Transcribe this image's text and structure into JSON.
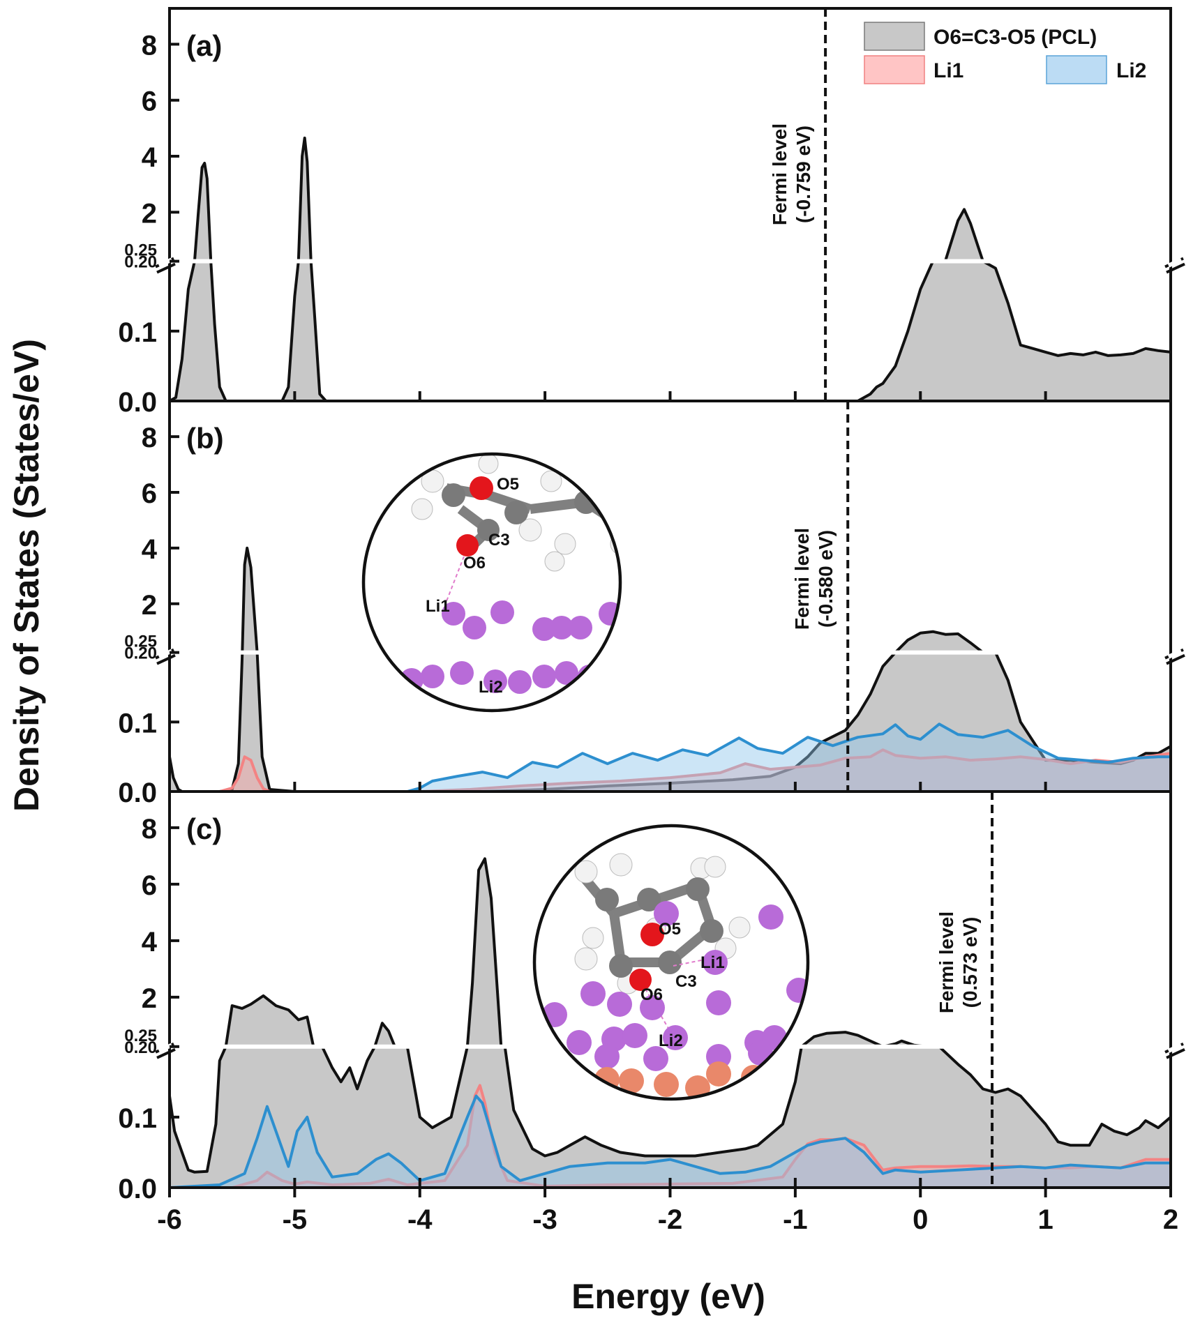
{
  "chart_data": {
    "type": "area",
    "title": "",
    "xlabel": "Energy (eV)",
    "ylabel": "Density of States (States/eV)",
    "xlim": [
      -6,
      2
    ],
    "xticks": [
      "-6",
      "-5",
      "-4",
      "-3",
      "-2",
      "-1",
      "0",
      "1",
      "2"
    ],
    "y_broken_axis": {
      "lower_range": [
        0,
        0.2
      ],
      "upper_range": [
        0.25,
        9
      ],
      "lower_ticks": [
        "0.0",
        "0.1",
        "0.20"
      ],
      "upper_ticks": [
        "0.25",
        "2",
        "4",
        "6",
        "8"
      ]
    },
    "legend": {
      "position": "top-right",
      "entries": [
        {
          "label": "O6=C3-O5 (PCL)",
          "color": "#c8c8c8",
          "edge": "#6f6f6f"
        },
        {
          "label": "Li1",
          "color": "#ffc5c5",
          "edge": "#f08080"
        },
        {
          "label": "Li2",
          "color": "#bcdcf4",
          "edge": "#5aa3d8"
        }
      ]
    },
    "panels": [
      {
        "label": "(a)",
        "fermi_label": "Fermi level",
        "fermi_value_text": "(-0.759 eV)",
        "fermi_level": -0.759,
        "series": [
          {
            "name": "O6=C3-O5 (PCL)",
            "x": [
              -6.0,
              -5.95,
              -5.9,
              -5.85,
              -5.8,
              -5.77,
              -5.74,
              -5.72,
              -5.7,
              -5.67,
              -5.64,
              -5.6,
              -5.55,
              -5.4,
              -5.2,
              -5.1,
              -5.05,
              -5.0,
              -4.97,
              -4.94,
              -4.92,
              -4.9,
              -4.87,
              -4.84,
              -4.8,
              -4.75,
              -4.5,
              -4.0,
              -3.0,
              -2.0,
              -1.0,
              -0.5,
              -0.4,
              -0.35,
              -0.3,
              -0.2,
              -0.1,
              0.0,
              0.1,
              0.2,
              0.3,
              0.35,
              0.4,
              0.5,
              0.6,
              0.7,
              0.8,
              0.9,
              1.0,
              1.1,
              1.2,
              1.3,
              1.4,
              1.5,
              1.6,
              1.7,
              1.8,
              1.9,
              2.0
            ],
            "y": [
              0.0,
              0.005,
              0.06,
              0.16,
              0.25,
              2.0,
              3.6,
              3.75,
              3.2,
              0.23,
              0.11,
              0.02,
              0.0,
              0.0,
              0.0,
              0.0,
              0.02,
              0.15,
              0.24,
              4.0,
              4.65,
              3.8,
              0.22,
              0.12,
              0.01,
              0.0,
              0.0,
              0.0,
              0.0,
              0.0,
              0.0,
              0.0,
              0.01,
              0.02,
              0.025,
              0.05,
              0.1,
              0.16,
              0.21,
              0.27,
              1.7,
              2.1,
              1.6,
              0.23,
              0.19,
              0.14,
              0.08,
              0.075,
              0.07,
              0.065,
              0.068,
              0.066,
              0.07,
              0.065,
              0.066,
              0.068,
              0.075,
              0.072,
              0.07
            ]
          }
        ]
      },
      {
        "label": "(b)",
        "fermi_label": "Fermi level",
        "fermi_value_text": "(-0.580 eV)",
        "fermi_level": -0.58,
        "inset_atoms": [
          "O5",
          "C3",
          "O6",
          "Li1",
          "Li2"
        ],
        "series": [
          {
            "name": "O6=C3-O5 (PCL)",
            "x": [
              -6.0,
              -5.97,
              -5.93,
              -5.9,
              -5.6,
              -5.5,
              -5.45,
              -5.42,
              -5.4,
              -5.38,
              -5.35,
              -5.3,
              -5.26,
              -5.2,
              -5.0,
              -4.0,
              -3.5,
              -3.0,
              -2.5,
              -2.0,
              -1.5,
              -1.2,
              -1.0,
              -0.9,
              -0.8,
              -0.6,
              -0.5,
              -0.4,
              -0.3,
              -0.2,
              -0.1,
              0.0,
              0.1,
              0.2,
              0.3,
              0.4,
              0.5,
              0.6,
              0.7,
              0.8,
              1.0,
              1.2,
              1.4,
              1.6,
              1.7,
              1.8,
              1.9,
              2.0
            ],
            "y": [
              0.05,
              0.02,
              0.003,
              0.0,
              0.0,
              0.003,
              0.04,
              0.19,
              3.4,
              4.0,
              3.3,
              0.2,
              0.05,
              0.003,
              0.0,
              0.0,
              0.0,
              0.003,
              0.008,
              0.012,
              0.017,
              0.022,
              0.035,
              0.05,
              0.07,
              0.088,
              0.11,
              0.14,
              0.18,
              0.225,
              0.7,
              0.95,
              1.0,
              0.9,
              0.92,
              0.6,
              0.24,
              0.2,
              0.16,
              0.1,
              0.045,
              0.045,
              0.042,
              0.04,
              0.045,
              0.055,
              0.055,
              0.065
            ]
          },
          {
            "name": "Li1",
            "x": [
              -6.0,
              -5.6,
              -5.5,
              -5.45,
              -5.4,
              -5.35,
              -5.3,
              -5.25,
              -5.2,
              -5.0,
              -4.0,
              -3.6,
              -3.2,
              -2.8,
              -2.4,
              -2.0,
              -1.6,
              -1.4,
              -1.2,
              -1.0,
              -0.8,
              -0.6,
              -0.4,
              -0.3,
              -0.2,
              0.0,
              0.2,
              0.4,
              0.6,
              0.8,
              1.0,
              1.2,
              1.4,
              1.6,
              1.8,
              2.0
            ],
            "y": [
              0.0,
              0.0,
              0.005,
              0.02,
              0.05,
              0.045,
              0.02,
              0.004,
              0.0,
              0.0,
              0.0,
              0.003,
              0.008,
              0.012,
              0.015,
              0.02,
              0.027,
              0.04,
              0.032,
              0.035,
              0.038,
              0.048,
              0.05,
              0.06,
              0.052,
              0.048,
              0.05,
              0.045,
              0.047,
              0.05,
              0.046,
              0.04,
              0.045,
              0.042,
              0.05,
              0.055
            ]
          },
          {
            "name": "Li2",
            "x": [
              -6.0,
              -4.1,
              -4.0,
              -3.9,
              -3.7,
              -3.5,
              -3.3,
              -3.1,
              -2.9,
              -2.7,
              -2.5,
              -2.3,
              -2.1,
              -1.9,
              -1.7,
              -1.45,
              -1.3,
              -1.1,
              -0.9,
              -0.7,
              -0.5,
              -0.3,
              -0.2,
              -0.1,
              0.0,
              0.15,
              0.3,
              0.5,
              0.7,
              0.9,
              1.1,
              1.3,
              1.5,
              1.7,
              1.9,
              2.0
            ],
            "y": [
              0.0,
              0.0,
              0.005,
              0.015,
              0.022,
              0.028,
              0.02,
              0.042,
              0.035,
              0.055,
              0.04,
              0.055,
              0.045,
              0.06,
              0.052,
              0.077,
              0.062,
              0.055,
              0.078,
              0.066,
              0.078,
              0.083,
              0.096,
              0.08,
              0.075,
              0.097,
              0.082,
              0.078,
              0.088,
              0.065,
              0.048,
              0.045,
              0.042,
              0.048,
              0.05,
              0.05
            ]
          }
        ]
      },
      {
        "label": "(c)",
        "fermi_label": "Fermi level",
        "fermi_value_text": "(0.573 eV)",
        "fermi_level": 0.573,
        "inset_atoms": [
          "O5",
          "Li1",
          "C3",
          "O6",
          "Li2"
        ],
        "series": [
          {
            "name": "O6=C3-O5 (PCL)",
            "x": [
              -6.0,
              -5.96,
              -5.9,
              -5.85,
              -5.8,
              -5.7,
              -5.63,
              -5.6,
              -5.55,
              -5.5,
              -5.42,
              -5.35,
              -5.25,
              -5.15,
              -5.05,
              -4.97,
              -4.9,
              -4.85,
              -4.78,
              -4.7,
              -4.63,
              -4.56,
              -4.5,
              -4.42,
              -4.36,
              -4.3,
              -4.25,
              -4.2,
              -4.1,
              -4.0,
              -3.9,
              -3.75,
              -3.62,
              -3.58,
              -3.53,
              -3.48,
              -3.43,
              -3.35,
              -3.32,
              -3.25,
              -3.1,
              -3.0,
              -2.9,
              -2.8,
              -2.68,
              -2.55,
              -2.4,
              -2.2,
              -2.0,
              -1.8,
              -1.6,
              -1.4,
              -1.3,
              -1.2,
              -1.1,
              -1.0,
              -0.95,
              -0.85,
              -0.75,
              -0.6,
              -0.5,
              -0.4,
              -0.3,
              -0.2,
              -0.15,
              -0.05,
              0.05,
              0.15,
              0.3,
              0.4,
              0.5,
              0.6,
              0.7,
              0.8,
              0.9,
              1.0,
              1.1,
              1.2,
              1.35,
              1.45,
              1.55,
              1.65,
              1.75,
              1.8,
              1.85,
              1.9,
              2.0
            ],
            "y": [
              0.13,
              0.08,
              0.05,
              0.025,
              0.022,
              0.023,
              0.09,
              0.18,
              0.25,
              1.7,
              1.6,
              1.75,
              2.05,
              1.7,
              1.55,
              1.2,
              1.3,
              0.24,
              0.21,
              0.17,
              0.15,
              0.17,
              0.14,
              0.18,
              0.24,
              1.08,
              0.8,
              0.24,
              0.2,
              0.1,
              0.085,
              0.1,
              0.24,
              2.5,
              6.5,
              6.9,
              5.5,
              0.24,
              0.2,
              0.11,
              0.055,
              0.045,
              0.05,
              0.06,
              0.072,
              0.06,
              0.05,
              0.045,
              0.045,
              0.045,
              0.05,
              0.055,
              0.06,
              0.075,
              0.09,
              0.15,
              0.22,
              0.6,
              0.72,
              0.76,
              0.65,
              0.45,
              0.22,
              0.35,
              0.45,
              0.3,
              0.22,
              0.2,
              0.175,
              0.16,
              0.14,
              0.135,
              0.14,
              0.13,
              0.11,
              0.09,
              0.065,
              0.06,
              0.06,
              0.09,
              0.08,
              0.075,
              0.085,
              0.095,
              0.09,
              0.085,
              0.1
            ]
          },
          {
            "name": "Li1",
            "x": [
              -6.0,
              -5.5,
              -5.3,
              -5.22,
              -5.1,
              -5.0,
              -4.9,
              -4.7,
              -4.4,
              -4.25,
              -4.1,
              -3.8,
              -3.62,
              -3.56,
              -3.52,
              -3.48,
              -3.4,
              -3.3,
              -3.0,
              -2.5,
              -2.0,
              -1.5,
              -1.1,
              -1.0,
              -0.9,
              -0.8,
              -0.7,
              -0.6,
              -0.45,
              -0.3,
              -0.2,
              0.0,
              0.2,
              0.4,
              0.6,
              0.8,
              1.0,
              1.2,
              1.4,
              1.6,
              1.8,
              2.0
            ],
            "y": [
              0.0,
              0.0,
              0.01,
              0.022,
              0.01,
              0.005,
              0.008,
              0.004,
              0.006,
              0.012,
              0.004,
              0.01,
              0.06,
              0.13,
              0.145,
              0.12,
              0.05,
              0.01,
              0.002,
              0.004,
              0.005,
              0.006,
              0.015,
              0.04,
              0.062,
              0.068,
              0.068,
              0.07,
              0.06,
              0.025,
              0.028,
              0.03,
              0.03,
              0.031,
              0.03,
              0.03,
              0.028,
              0.028,
              0.03,
              0.028,
              0.04,
              0.04
            ]
          },
          {
            "name": "Li2",
            "x": [
              -6.0,
              -5.6,
              -5.4,
              -5.3,
              -5.22,
              -5.15,
              -5.05,
              -4.98,
              -4.9,
              -4.82,
              -4.7,
              -4.5,
              -4.35,
              -4.25,
              -4.15,
              -4.0,
              -3.8,
              -3.62,
              -3.55,
              -3.5,
              -3.45,
              -3.35,
              -3.2,
              -3.0,
              -2.8,
              -2.5,
              -2.2,
              -2.0,
              -1.8,
              -1.6,
              -1.4,
              -1.2,
              -1.0,
              -0.9,
              -0.8,
              -0.6,
              -0.45,
              -0.3,
              -0.2,
              0.0,
              0.2,
              0.4,
              0.6,
              0.8,
              1.0,
              1.2,
              1.4,
              1.6,
              1.8,
              2.0
            ],
            "y": [
              0.0,
              0.004,
              0.02,
              0.07,
              0.115,
              0.08,
              0.03,
              0.08,
              0.1,
              0.05,
              0.015,
              0.02,
              0.04,
              0.048,
              0.035,
              0.01,
              0.02,
              0.1,
              0.13,
              0.12,
              0.09,
              0.03,
              0.01,
              0.02,
              0.03,
              0.035,
              0.035,
              0.04,
              0.03,
              0.02,
              0.022,
              0.03,
              0.05,
              0.06,
              0.065,
              0.07,
              0.05,
              0.02,
              0.025,
              0.022,
              0.024,
              0.026,
              0.028,
              0.03,
              0.028,
              0.032,
              0.03,
              0.028,
              0.035,
              0.035
            ]
          }
        ]
      }
    ]
  }
}
